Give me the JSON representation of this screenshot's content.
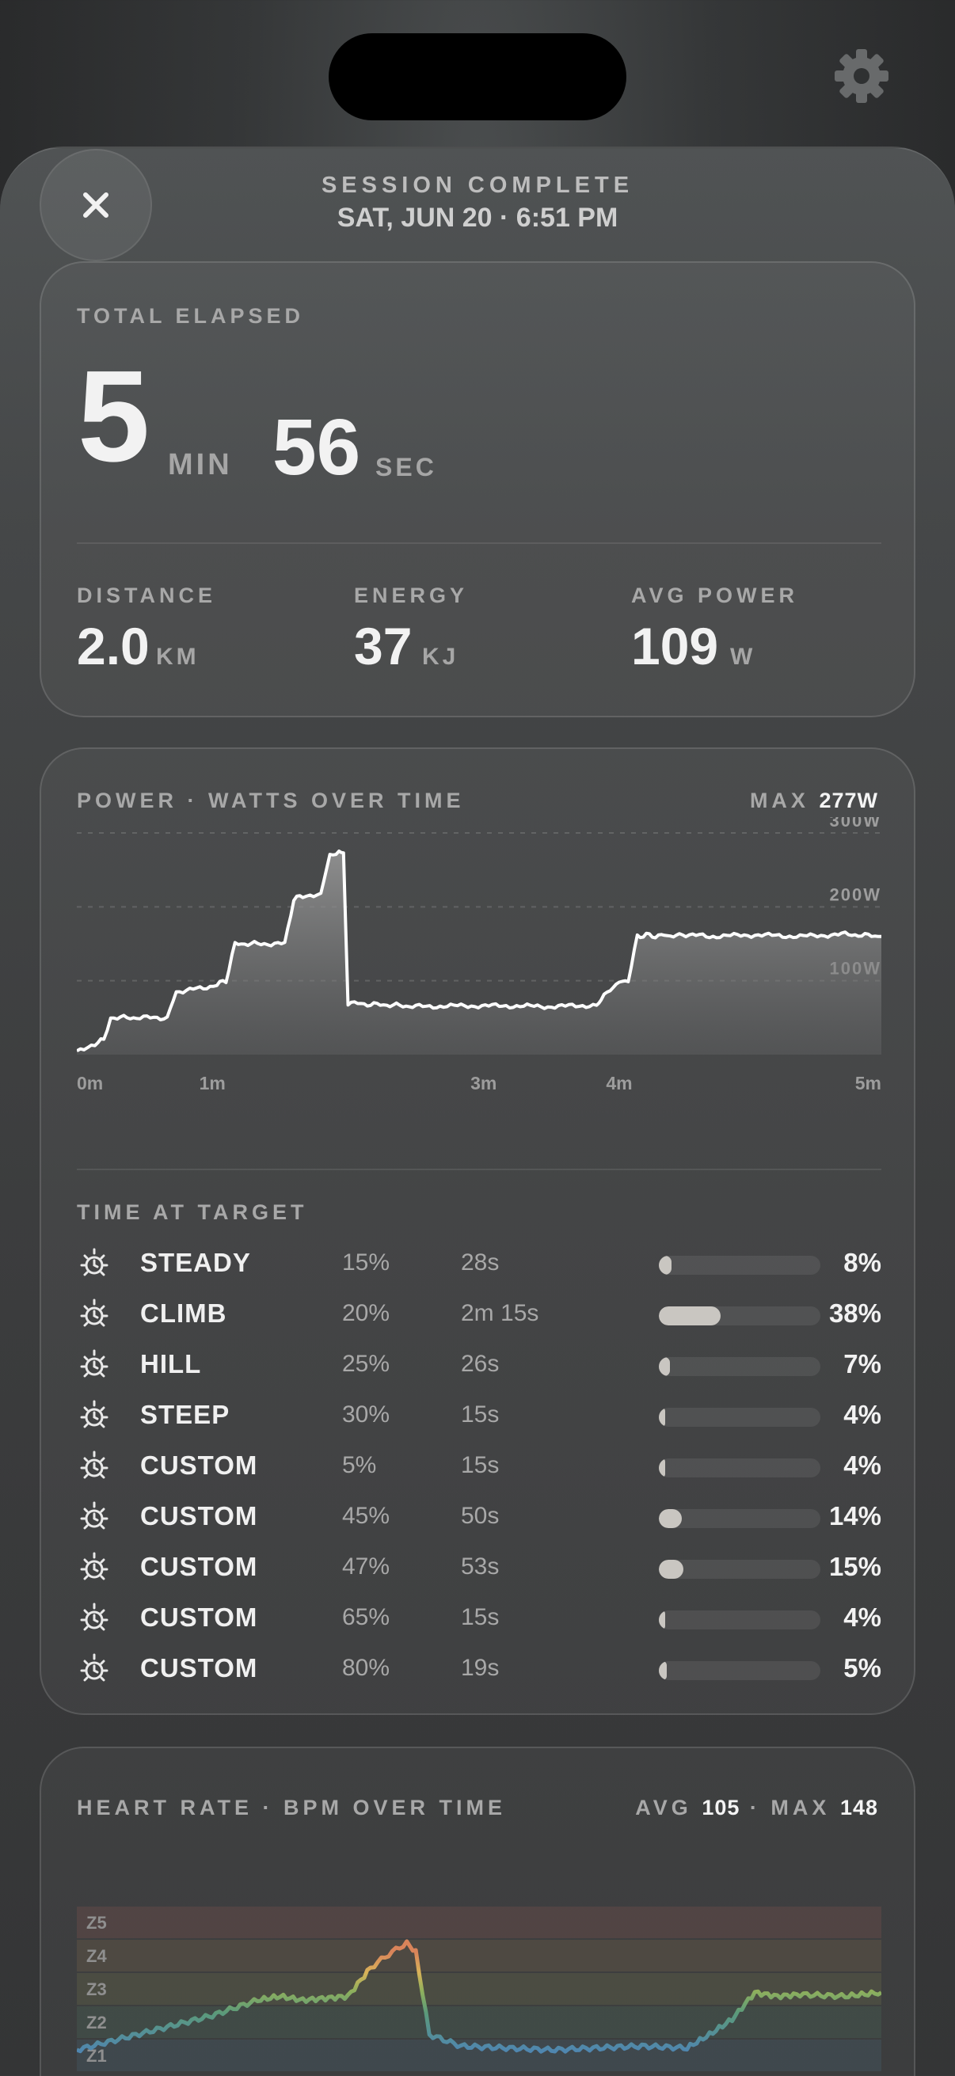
{
  "header": {
    "kicker": "SESSION COMPLETE",
    "date": "SAT, JUN 20 · 6:51 PM"
  },
  "icons": {
    "close": "close-icon",
    "settings": "gear-icon",
    "target": "sun-target-icon"
  },
  "summary": {
    "total_label": "TOTAL ELAPSED",
    "minutes": "5",
    "minutes_unit": "MIN",
    "seconds": "56",
    "seconds_unit": "SEC",
    "stats": [
      {
        "label": "DISTANCE",
        "value": "2.0",
        "unit": "KM"
      },
      {
        "label": "ENERGY",
        "value": "37",
        "unit": "KJ"
      },
      {
        "label": "AVG POWER",
        "value": "109",
        "unit": "W"
      }
    ]
  },
  "power": {
    "title": "POWER · WATTS OVER TIME",
    "max_label": "MAX",
    "max_value": "277W"
  },
  "targets": {
    "title": "TIME AT TARGET",
    "rows": [
      {
        "name": "STEADY",
        "pct": "15%",
        "time": "28s",
        "share": "8%",
        "fill": 0.08
      },
      {
        "name": "CLIMB",
        "pct": "20%",
        "time": "2m 15s",
        "share": "38%",
        "fill": 0.38
      },
      {
        "name": "HILL",
        "pct": "25%",
        "time": "26s",
        "share": "7%",
        "fill": 0.07
      },
      {
        "name": "STEEP",
        "pct": "30%",
        "time": "15s",
        "share": "4%",
        "fill": 0.04
      },
      {
        "name": "CUSTOM",
        "pct": "5%",
        "time": "15s",
        "share": "4%",
        "fill": 0.04
      },
      {
        "name": "CUSTOM",
        "pct": "45%",
        "time": "50s",
        "share": "14%",
        "fill": 0.14
      },
      {
        "name": "CUSTOM",
        "pct": "47%",
        "time": "53s",
        "share": "15%",
        "fill": 0.15
      },
      {
        "name": "CUSTOM",
        "pct": "65%",
        "time": "15s",
        "share": "4%",
        "fill": 0.04
      },
      {
        "name": "CUSTOM",
        "pct": "80%",
        "time": "19s",
        "share": "5%",
        "fill": 0.05
      }
    ]
  },
  "heart": {
    "title": "HEART RATE · BPM OVER TIME",
    "avg_label": "AVG",
    "avg_value": "105",
    "max_label": "MAX",
    "max_value": "148"
  },
  "chart_data": [
    {
      "type": "area",
      "title": "POWER · WATTS OVER TIME",
      "xlabel": "",
      "ylabel": "",
      "x_unit": "seconds",
      "x_ticks": [
        "0m",
        "1m",
        "3m",
        "4m",
        "5m"
      ],
      "y_ticks": [
        "100W",
        "200W",
        "300W"
      ],
      "ylim": [
        0,
        300
      ],
      "grid": true,
      "series": [
        {
          "x": [
            0,
            8,
            12,
            15,
            28,
            40,
            44,
            50,
            56,
            62,
            66,
            70,
            80,
            92,
            96,
            100,
            108,
            112,
            116,
            118,
            120,
            130,
            140,
            150,
            170,
            190,
            210,
            230,
            232,
            236,
            240,
            244,
            248,
            252,
            256,
            260,
            264,
            268,
            280,
            300,
            320,
            340,
            356
          ],
          "y": [
            5,
            15,
            20,
            50,
            50,
            50,
            85,
            88,
            90,
            95,
            100,
            150,
            150,
            150,
            210,
            215,
            218,
            270,
            274,
            272,
            70,
            68,
            67,
            65,
            66,
            66,
            65,
            67,
            75,
            88,
            98,
            100,
            160,
            162,
            160,
            162,
            160,
            163,
            160,
            162,
            160,
            163,
            160
          ]
        }
      ]
    },
    {
      "type": "line",
      "title": "HEART RATE · BPM OVER TIME",
      "xlabel": "",
      "ylabel": "",
      "x_unit": "seconds",
      "zones": [
        "Z1",
        "Z2",
        "Z3",
        "Z4",
        "Z5"
      ],
      "series": [
        {
          "x": [
            0,
            20,
            40,
            60,
            80,
            90,
            100,
            110,
            120,
            130,
            138,
            146,
            150,
            156,
            170,
            190,
            210,
            230,
            250,
            270,
            280,
            290,
            300,
            310,
            320,
            340,
            356
          ],
          "y": [
            92,
            98,
            104,
            110,
            118,
            120,
            118,
            119,
            120,
            135,
            142,
            148,
            143,
            100,
            94,
            93,
            92,
            93,
            94,
            93,
            100,
            108,
            122,
            120,
            121,
            120,
            122
          ]
        }
      ]
    }
  ]
}
